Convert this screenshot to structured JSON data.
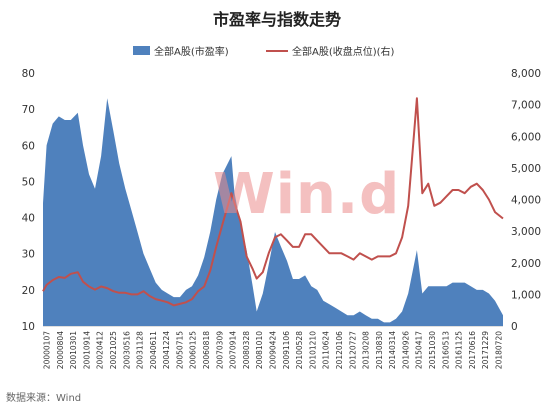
{
  "title": "市盈率与指数走势",
  "source": "数据来源：Wind",
  "watermark": "Win.d",
  "legend": {
    "pe_label": "全部A股(市盈率)",
    "index_label": "全部A股(收盘点位)(右)"
  },
  "colors": {
    "area": "#4f81bd",
    "line": "#c0504d"
  },
  "chart_data": {
    "type": "area",
    "title": "市盈率与指数走势",
    "x_range": [
      "2000-01-07",
      "2018-12-31"
    ],
    "x_tick_labels": [
      "20000107",
      "20000804",
      "20010301",
      "20010914",
      "20020412",
      "20021025",
      "20030516",
      "20031128",
      "20040611",
      "20041224",
      "20050715",
      "20060125",
      "20060818",
      "20070309",
      "20070914",
      "20080328",
      "20081010",
      "20090424",
      "20091106",
      "20100528",
      "20101210",
      "20110624",
      "20120106",
      "20120727",
      "20130208",
      "20130830",
      "20140314",
      "20140926",
      "20150417",
      "20151030",
      "20160513",
      "20161125",
      "20170616",
      "20171229",
      "20180720"
    ],
    "left_axis": {
      "ticks": [
        10,
        20,
        30,
        40,
        50,
        60,
        70,
        80
      ],
      "ylim": [
        10,
        80
      ]
    },
    "right_axis": {
      "ticks": [
        "0",
        "1,000",
        "2,000",
        "3,000",
        "4,000",
        "5,000",
        "6,000",
        "7,000",
        "8,000"
      ],
      "ylim": [
        0,
        8000
      ]
    },
    "legend_position": "top",
    "series": [
      {
        "name": "全部A股(市盈率)",
        "type": "area",
        "axis": "left",
        "x": [
          "2000-01-07",
          "2000-03-01",
          "2000-06-01",
          "2000-09-01",
          "2000-12-01",
          "2001-03-01",
          "2001-06-14",
          "2001-09-01",
          "2001-12-01",
          "2002-03-01",
          "2002-06-01",
          "2002-09-01",
          "2002-12-01",
          "2003-03-01",
          "2003-06-01",
          "2003-09-01",
          "2003-12-01",
          "2004-03-01",
          "2004-06-01",
          "2004-09-01",
          "2004-12-01",
          "2005-03-01",
          "2005-06-01",
          "2005-09-01",
          "2005-12-01",
          "2006-03-01",
          "2006-06-01",
          "2006-09-01",
          "2006-12-01",
          "2007-03-01",
          "2007-06-01",
          "2007-10-16",
          "2007-12-01",
          "2008-03-01",
          "2008-06-01",
          "2008-09-01",
          "2008-11-01",
          "2009-02-01",
          "2009-05-01",
          "2009-08-04",
          "2009-11-01",
          "2010-02-01",
          "2010-05-01",
          "2010-08-01",
          "2010-11-01",
          "2011-02-01",
          "2011-05-01",
          "2011-08-01",
          "2011-11-01",
          "2012-02-01",
          "2012-05-01",
          "2012-08-01",
          "2012-11-01",
          "2013-02-01",
          "2013-05-01",
          "2013-08-01",
          "2013-11-01",
          "2014-02-01",
          "2014-05-01",
          "2014-08-01",
          "2014-11-01",
          "2015-02-01",
          "2015-06-12",
          "2015-09-01",
          "2015-12-01",
          "2016-03-01",
          "2016-06-01",
          "2016-09-01",
          "2016-12-01",
          "2017-03-01",
          "2017-06-01",
          "2017-09-01",
          "2017-12-01",
          "2018-03-01",
          "2018-06-01",
          "2018-09-01",
          "2018-12-31"
        ],
        "values": [
          44,
          60,
          66,
          68,
          67,
          67,
          69,
          60,
          52,
          48,
          57,
          73,
          64,
          55,
          48,
          42,
          36,
          30,
          26,
          22,
          20,
          19,
          18,
          18,
          20,
          21,
          24,
          29,
          36,
          45,
          52,
          57,
          47,
          38,
          31,
          21,
          14,
          19,
          27,
          36,
          32,
          28,
          23,
          23,
          24,
          21,
          20,
          17,
          16,
          15,
          14,
          13,
          13,
          14,
          13,
          12,
          12,
          11,
          11,
          12,
          14,
          19,
          31,
          19,
          21,
          21,
          21,
          21,
          22,
          22,
          22,
          21,
          20,
          20,
          19,
          17,
          13
        ]
      },
      {
        "name": "全部A股(收盘点位)(右)",
        "type": "line",
        "axis": "right",
        "x": [
          "2000-01-07",
          "2000-03-01",
          "2000-06-01",
          "2000-09-01",
          "2000-12-01",
          "2001-03-01",
          "2001-06-14",
          "2001-09-01",
          "2001-12-01",
          "2002-03-01",
          "2002-06-01",
          "2002-09-01",
          "2002-12-01",
          "2003-03-01",
          "2003-06-01",
          "2003-09-01",
          "2003-12-01",
          "2004-03-01",
          "2004-06-01",
          "2004-09-01",
          "2004-12-01",
          "2005-03-01",
          "2005-06-01",
          "2005-09-01",
          "2005-12-01",
          "2006-03-01",
          "2006-06-01",
          "2006-09-01",
          "2006-12-01",
          "2007-03-01",
          "2007-06-01",
          "2007-10-16",
          "2007-12-01",
          "2008-03-01",
          "2008-06-01",
          "2008-09-01",
          "2008-11-01",
          "2009-02-01",
          "2009-05-01",
          "2009-08-04",
          "2009-11-01",
          "2010-02-01",
          "2010-05-01",
          "2010-08-01",
          "2010-11-01",
          "2011-02-01",
          "2011-05-01",
          "2011-08-01",
          "2011-11-01",
          "2012-02-01",
          "2012-05-01",
          "2012-08-01",
          "2012-11-01",
          "2013-02-01",
          "2013-05-01",
          "2013-08-01",
          "2013-11-01",
          "2014-02-01",
          "2014-05-01",
          "2014-08-01",
          "2014-11-01",
          "2015-02-01",
          "2015-06-12",
          "2015-09-01",
          "2015-12-01",
          "2016-03-01",
          "2016-06-01",
          "2016-09-01",
          "2016-12-01",
          "2017-03-01",
          "2017-06-01",
          "2017-09-01",
          "2017-12-01",
          "2018-03-01",
          "2018-06-01",
          "2018-09-01",
          "2018-12-31"
        ],
        "values": [
          1100,
          1300,
          1450,
          1550,
          1520,
          1650,
          1700,
          1400,
          1250,
          1150,
          1250,
          1200,
          1100,
          1050,
          1050,
          1000,
          1000,
          1100,
          950,
          850,
          800,
          750,
          650,
          700,
          750,
          850,
          1100,
          1250,
          1750,
          2500,
          3200,
          4200,
          3900,
          3300,
          2200,
          1800,
          1500,
          1700,
          2300,
          2800,
          2900,
          2700,
          2500,
          2500,
          2900,
          2900,
          2700,
          2500,
          2300,
          2300,
          2300,
          2200,
          2100,
          2300,
          2200,
          2100,
          2200,
          2200,
          2200,
          2300,
          2800,
          3800,
          7200,
          4200,
          4500,
          3800,
          3900,
          4100,
          4300,
          4300,
          4200,
          4400,
          4500,
          4300,
          4000,
          3600,
          3400
        ]
      }
    ]
  }
}
